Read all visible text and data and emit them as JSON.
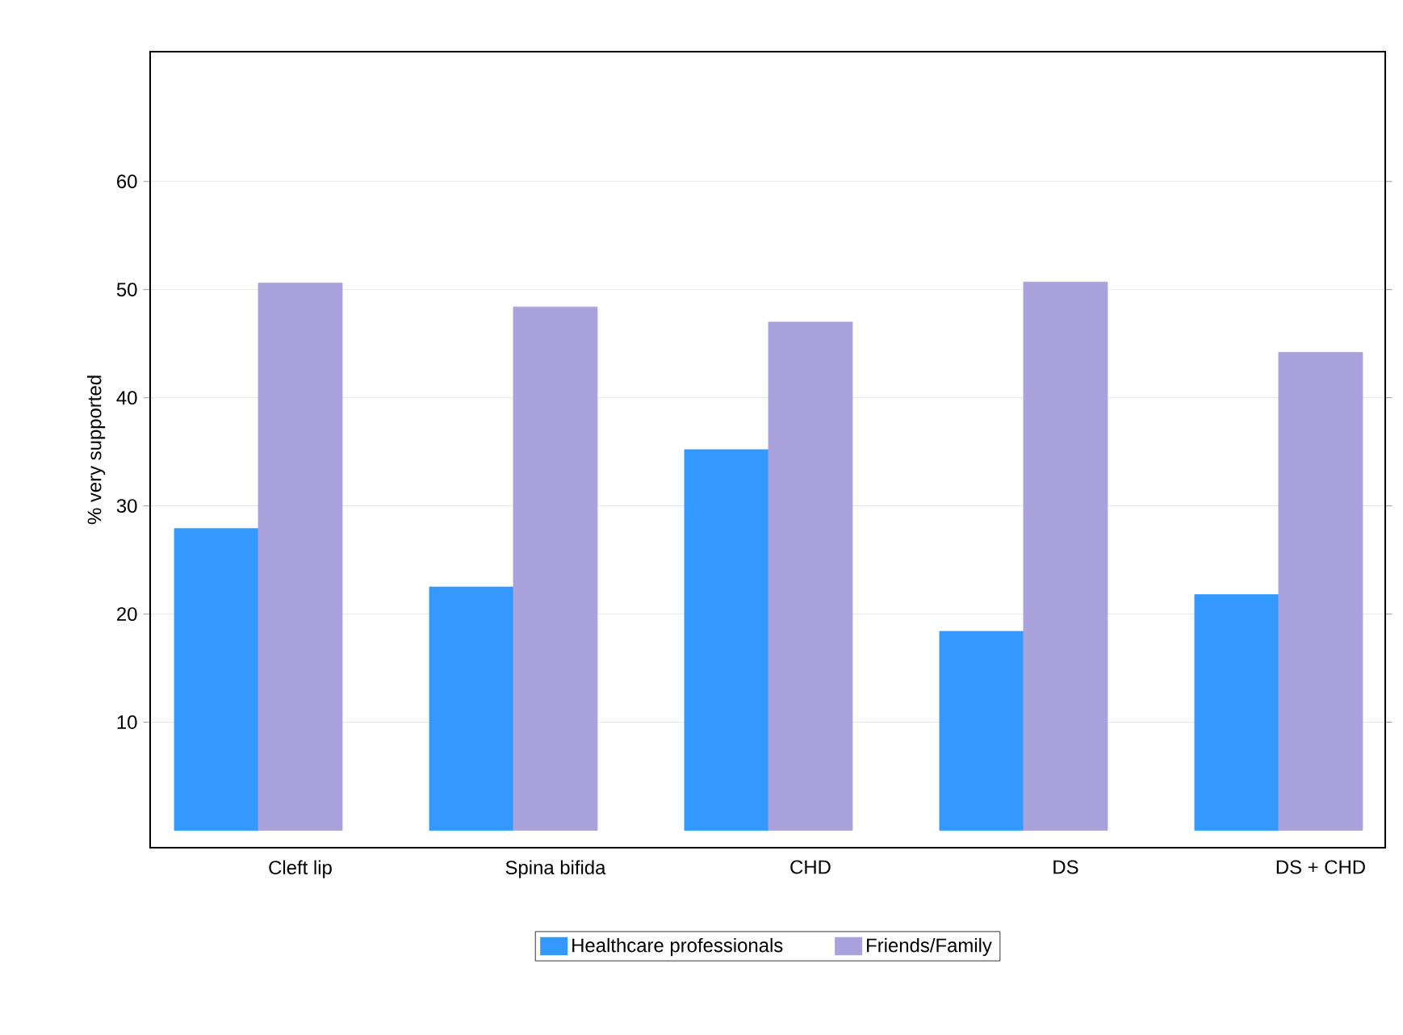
{
  "chart_data": {
    "type": "bar",
    "ylabel": "% very supported",
    "categories": [
      "Cleft lip",
      "Spina bifida",
      "CHD",
      "DS",
      "DS + CHD"
    ],
    "series": [
      {
        "name": "Healthcare professionals",
        "color": "#3399ff",
        "values": [
          27.9,
          22.5,
          35.2,
          18.4,
          21.8
        ]
      },
      {
        "name": "Friends/Family",
        "color": "#a9a2dd",
        "values": [
          50.6,
          48.4,
          47.0,
          50.7,
          44.2
        ]
      }
    ],
    "ylim": [
      -1.6,
      72
    ],
    "yticks": [
      10,
      20,
      30,
      40,
      50,
      60
    ],
    "grid": "y",
    "legend": "bottom"
  }
}
